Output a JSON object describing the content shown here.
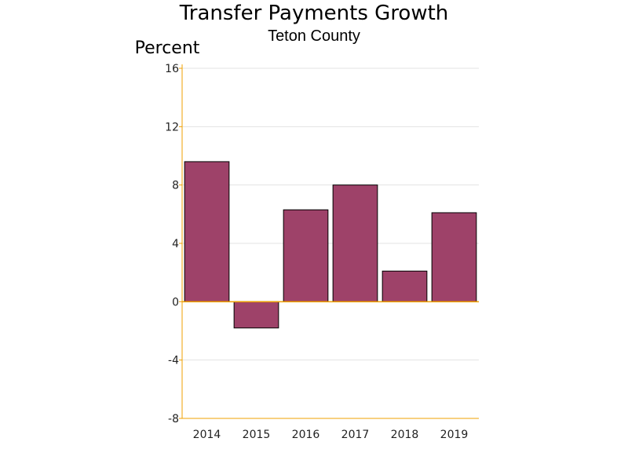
{
  "chart_data": {
    "type": "bar",
    "title": "Transfer Payments Growth",
    "subtitle": "Teton County",
    "ylabel": "Percent",
    "xlabel": "",
    "categories": [
      "2014",
      "2015",
      "2016",
      "2017",
      "2018",
      "2019"
    ],
    "values": [
      9.6,
      -1.8,
      6.3,
      8.0,
      2.1,
      6.1
    ],
    "ylim": [
      -8,
      16
    ],
    "yticks": [
      "16",
      "12",
      "8",
      "4",
      "0",
      "-4",
      "-8"
    ],
    "grid": true,
    "bar_color": "#9e4269",
    "axis_color": "#f0a000"
  }
}
